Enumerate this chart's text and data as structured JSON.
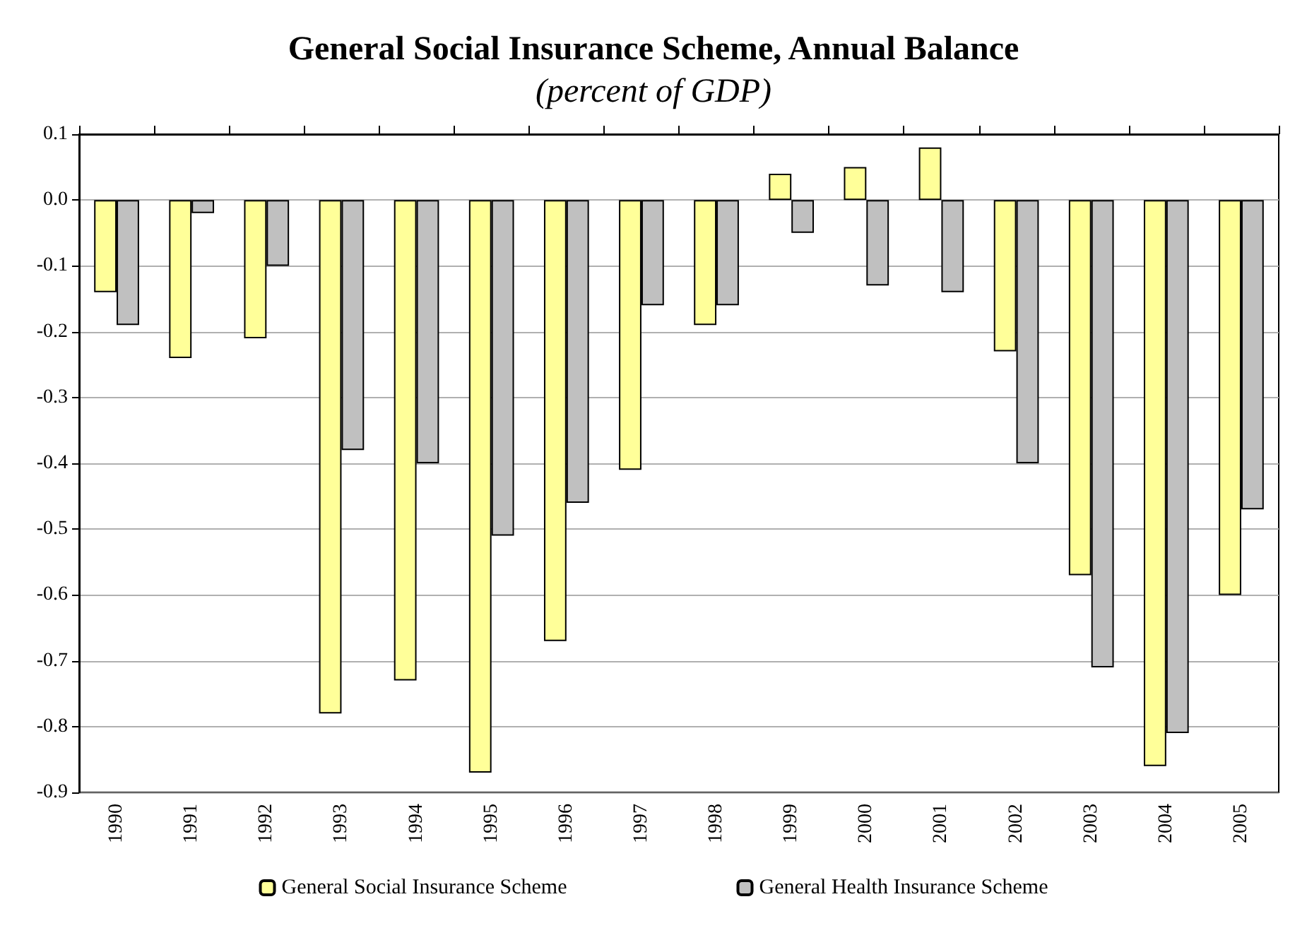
{
  "chart_data": {
    "type": "bar",
    "title": "General Social Insurance Scheme, Annual Balance",
    "subtitle": "(percent of GDP)",
    "categories": [
      "1990",
      "1991",
      "1992",
      "1993",
      "1994",
      "1995",
      "1996",
      "1997",
      "1998",
      "1999",
      "2000",
      "2001",
      "2002",
      "2003",
      "2004",
      "2005"
    ],
    "series": [
      {
        "name": "General Social Insurance Scheme",
        "color": "#ffff99",
        "values": [
          -0.14,
          -0.24,
          -0.21,
          -0.78,
          -0.73,
          -0.87,
          -0.67,
          -0.41,
          -0.19,
          0.04,
          0.05,
          0.08,
          -0.23,
          -0.57,
          -0.86,
          -0.6
        ]
      },
      {
        "name": "General Health Insurance Scheme",
        "color": "#c0c0c0",
        "values": [
          -0.19,
          -0.02,
          -0.1,
          -0.38,
          -0.4,
          -0.51,
          -0.46,
          -0.16,
          -0.16,
          -0.05,
          -0.13,
          -0.14,
          -0.4,
          -0.71,
          -0.81,
          -0.47
        ]
      }
    ],
    "ylim": [
      -0.9,
      0.1
    ],
    "yticks": [
      {
        "value": 0.1,
        "label": "0.1"
      },
      {
        "value": 0,
        "label": "0.0"
      },
      {
        "value": -0.1,
        "label": "-0.1"
      },
      {
        "value": -0.2,
        "label": "-0.2"
      },
      {
        "value": -0.3,
        "label": "-0.3"
      },
      {
        "value": -0.4,
        "label": "-0.4"
      },
      {
        "value": -0.5,
        "label": "-0.5"
      },
      {
        "value": -0.6,
        "label": "-0.6"
      },
      {
        "value": -0.7,
        "label": "-0.7"
      },
      {
        "value": -0.8,
        "label": "-0.8"
      },
      {
        "value": -0.9,
        "label": "-0.9"
      }
    ],
    "grid": "y",
    "legend": "bottom"
  }
}
